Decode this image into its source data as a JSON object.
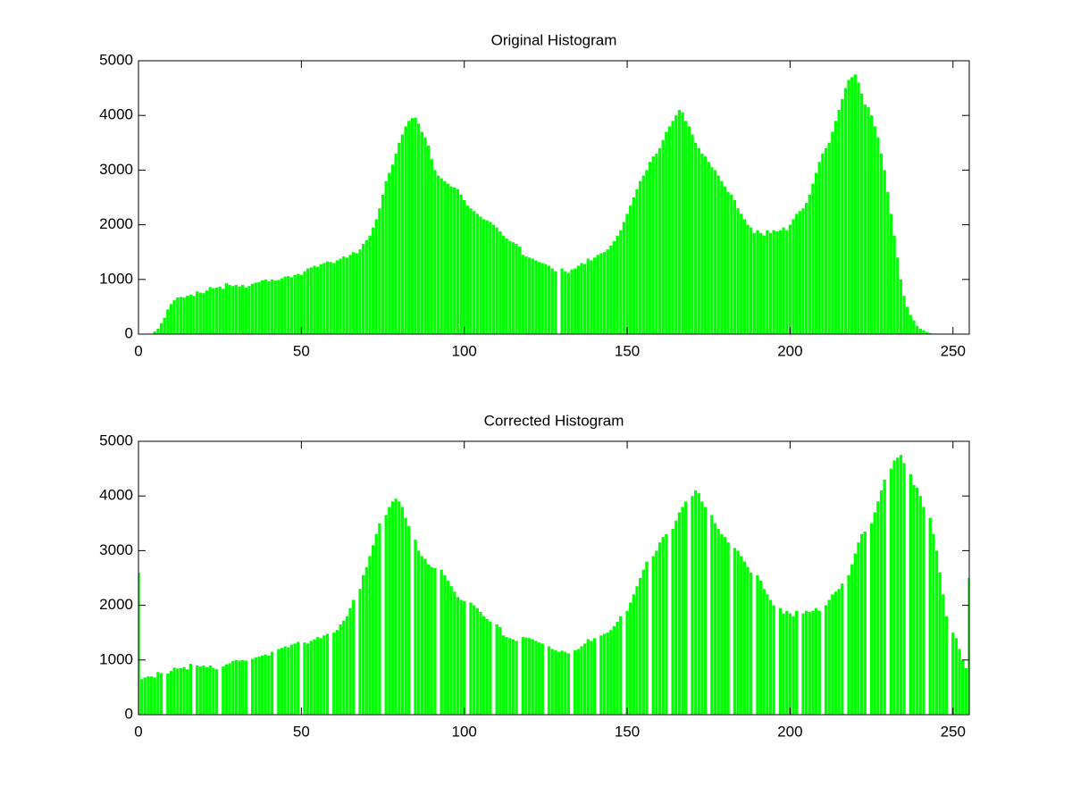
{
  "chart_data": [
    {
      "type": "bar",
      "title": "Original Histogram",
      "color": "#00ff00",
      "x": [
        0,
        1,
        2,
        3,
        4,
        5,
        6,
        7,
        8,
        9,
        10,
        11,
        12,
        13,
        14,
        15,
        16,
        17,
        18,
        19,
        20,
        21,
        22,
        23,
        24,
        25,
        26,
        27,
        28,
        29,
        30,
        31,
        32,
        33,
        34,
        35,
        36,
        37,
        38,
        39,
        40,
        41,
        42,
        43,
        44,
        45,
        46,
        47,
        48,
        49,
        50,
        51,
        52,
        53,
        54,
        55,
        56,
        57,
        58,
        59,
        60,
        61,
        62,
        63,
        64,
        65,
        66,
        67,
        68,
        69,
        70,
        71,
        72,
        73,
        74,
        75,
        76,
        77,
        78,
        79,
        80,
        81,
        82,
        83,
        84,
        85,
        86,
        87,
        88,
        89,
        90,
        91,
        92,
        93,
        94,
        95,
        96,
        97,
        98,
        99,
        100,
        101,
        102,
        103,
        104,
        105,
        106,
        107,
        108,
        109,
        110,
        111,
        112,
        113,
        114,
        115,
        116,
        117,
        118,
        119,
        120,
        121,
        122,
        123,
        124,
        125,
        126,
        127,
        128,
        129,
        130,
        131,
        132,
        133,
        134,
        135,
        136,
        137,
        138,
        139,
        140,
        141,
        142,
        143,
        144,
        145,
        146,
        147,
        148,
        149,
        150,
        151,
        152,
        153,
        154,
        155,
        156,
        157,
        158,
        159,
        160,
        161,
        162,
        163,
        164,
        165,
        166,
        167,
        168,
        169,
        170,
        171,
        172,
        173,
        174,
        175,
        176,
        177,
        178,
        179,
        180,
        181,
        182,
        183,
        184,
        185,
        186,
        187,
        188,
        189,
        190,
        191,
        192,
        193,
        194,
        195,
        196,
        197,
        198,
        199,
        200,
        201,
        202,
        203,
        204,
        205,
        206,
        207,
        208,
        209,
        210,
        211,
        212,
        213,
        214,
        215,
        216,
        217,
        218,
        219,
        220,
        221,
        222,
        223,
        224,
        225,
        226,
        227,
        228,
        229,
        230,
        231,
        232,
        233,
        234,
        235,
        236,
        237,
        238,
        239,
        240,
        241,
        242,
        243,
        244,
        245,
        246,
        247,
        248,
        249,
        250,
        251,
        252,
        253,
        254,
        255
      ],
      "values": [
        0,
        0,
        0,
        0,
        0,
        50,
        100,
        200,
        300,
        450,
        550,
        620,
        670,
        680,
        670,
        700,
        720,
        700,
        780,
        760,
        750,
        800,
        860,
        840,
        850,
        870,
        830,
        930,
        900,
        880,
        900,
        870,
        900,
        850,
        880,
        920,
        940,
        950,
        980,
        1000,
        970,
        1000,
        980,
        990,
        1020,
        1050,
        1060,
        1040,
        1080,
        1100,
        1080,
        1150,
        1200,
        1220,
        1250,
        1230,
        1280,
        1300,
        1330,
        1320,
        1300,
        1350,
        1380,
        1420,
        1400,
        1450,
        1500,
        1480,
        1550,
        1650,
        1720,
        1800,
        1950,
        2100,
        2300,
        2550,
        2800,
        2950,
        3100,
        3300,
        3500,
        3650,
        3800,
        3900,
        3950,
        3960,
        3850,
        3700,
        3600,
        3450,
        3200,
        3000,
        2900,
        2850,
        2800,
        2750,
        2700,
        2680,
        2650,
        2550,
        2450,
        2350,
        2300,
        2250,
        2200,
        2150,
        2100,
        2080,
        2050,
        2000,
        1950,
        1880,
        1800,
        1750,
        1700,
        1680,
        1650,
        1600,
        1450,
        1420,
        1400,
        1380,
        1350,
        1320,
        1300,
        1280,
        1250,
        1200,
        1150,
        0,
        1200,
        1150,
        1120,
        1180,
        1200,
        1250,
        1300,
        1280,
        1380,
        1350,
        1400,
        1450,
        1480,
        1500,
        1550,
        1620,
        1700,
        1800,
        1900,
        2050,
        2200,
        2350,
        2500,
        2650,
        2800,
        2900,
        3000,
        3150,
        3250,
        3300,
        3400,
        3550,
        3700,
        3800,
        3900,
        4000,
        4100,
        4050,
        3900,
        3800,
        3650,
        3500,
        3400,
        3300,
        3250,
        3150,
        3050,
        3000,
        2900,
        2800,
        2700,
        2600,
        2550,
        2450,
        2300,
        2200,
        2100,
        2000,
        1950,
        1850,
        1900,
        1850,
        1800,
        1900,
        1850,
        1900,
        1880,
        1900,
        1950,
        1900,
        2000,
        2100,
        2200,
        2250,
        2300,
        2400,
        2550,
        2750,
        2950,
        3150,
        3300,
        3400,
        3500,
        3700,
        3900,
        4100,
        4300,
        4500,
        4650,
        4700,
        4750,
        4600,
        4400,
        4200,
        4150,
        4000,
        3800,
        3600,
        3300,
        3000,
        2600,
        2200,
        1800,
        1400,
        1000,
        700,
        500,
        350,
        250,
        150,
        100,
        70,
        40,
        20,
        10,
        0,
        0,
        0,
        0,
        0,
        0,
        0,
        0,
        0,
        0,
        0
      ],
      "xlim": [
        0,
        255
      ],
      "xticks": [
        0,
        50,
        100,
        150,
        200,
        250
      ],
      "ylim": [
        0,
        5000
      ],
      "yticks": [
        0,
        1000,
        2000,
        3000,
        4000,
        5000
      ]
    },
    {
      "type": "bar",
      "title": "Corrected Histogram",
      "color": "#00ff00",
      "x": [
        0,
        1,
        2,
        3,
        4,
        5,
        6,
        7,
        8,
        9,
        10,
        11,
        12,
        13,
        14,
        15,
        16,
        17,
        18,
        19,
        20,
        21,
        22,
        23,
        24,
        25,
        26,
        27,
        28,
        29,
        30,
        31,
        32,
        33,
        34,
        35,
        36,
        37,
        38,
        39,
        40,
        41,
        42,
        43,
        44,
        45,
        46,
        47,
        48,
        49,
        50,
        51,
        52,
        53,
        54,
        55,
        56,
        57,
        58,
        59,
        60,
        61,
        62,
        63,
        64,
        65,
        66,
        67,
        68,
        69,
        70,
        71,
        72,
        73,
        74,
        75,
        76,
        77,
        78,
        79,
        80,
        81,
        82,
        83,
        84,
        85,
        86,
        87,
        88,
        89,
        90,
        91,
        92,
        93,
        94,
        95,
        96,
        97,
        98,
        99,
        100,
        101,
        102,
        103,
        104,
        105,
        106,
        107,
        108,
        109,
        110,
        111,
        112,
        113,
        114,
        115,
        116,
        117,
        118,
        119,
        120,
        121,
        122,
        123,
        124,
        125,
        126,
        127,
        128,
        129,
        130,
        131,
        132,
        133,
        134,
        135,
        136,
        137,
        138,
        139,
        140,
        141,
        142,
        143,
        144,
        145,
        146,
        147,
        148,
        149,
        150,
        151,
        152,
        153,
        154,
        155,
        156,
        157,
        158,
        159,
        160,
        161,
        162,
        163,
        164,
        165,
        166,
        167,
        168,
        169,
        170,
        171,
        172,
        173,
        174,
        175,
        176,
        177,
        178,
        179,
        180,
        181,
        182,
        183,
        184,
        185,
        186,
        187,
        188,
        189,
        190,
        191,
        192,
        193,
        194,
        195,
        196,
        197,
        198,
        199,
        200,
        201,
        202,
        203,
        204,
        205,
        206,
        207,
        208,
        209,
        210,
        211,
        212,
        213,
        214,
        215,
        216,
        217,
        218,
        219,
        220,
        221,
        222,
        223,
        224,
        225,
        226,
        227,
        228,
        229,
        230,
        231,
        232,
        233,
        234,
        235,
        236,
        237,
        238,
        239,
        240,
        241,
        242,
        243,
        244,
        245,
        246,
        247,
        248,
        249,
        250,
        251,
        252,
        253,
        254,
        255
      ],
      "values": [
        2600,
        650,
        680,
        700,
        700,
        680,
        780,
        760,
        0,
        750,
        800,
        860,
        840,
        850,
        870,
        830,
        930,
        0,
        900,
        880,
        900,
        870,
        900,
        850,
        830,
        0,
        880,
        920,
        940,
        980,
        1000,
        990,
        1000,
        990,
        0,
        1020,
        1050,
        1060,
        1080,
        1100,
        1080,
        1150,
        0,
        1200,
        1220,
        1250,
        1230,
        1280,
        1300,
        1330,
        0,
        1320,
        1300,
        1350,
        1380,
        1420,
        1400,
        1450,
        1480,
        0,
        1500,
        1550,
        1650,
        1720,
        1800,
        1950,
        2100,
        0,
        2300,
        2550,
        2700,
        2900,
        3100,
        3300,
        3500,
        0,
        3650,
        3800,
        3900,
        3950,
        3900,
        3800,
        3600,
        3450,
        0,
        3200,
        3000,
        2900,
        2850,
        2750,
        2700,
        2680,
        0,
        2650,
        2550,
        2450,
        2350,
        2250,
        2150,
        2100,
        2080,
        0,
        2050,
        2000,
        1950,
        1880,
        1800,
        1750,
        1700,
        0,
        1650,
        1600,
        1450,
        1420,
        1400,
        1380,
        1350,
        0,
        1420,
        1410,
        1400,
        1380,
        1350,
        1320,
        1300,
        0,
        1250,
        1200,
        1180,
        1150,
        1170,
        1150,
        1120,
        0,
        1180,
        1200,
        1250,
        1300,
        1380,
        1350,
        1400,
        0,
        1450,
        1480,
        1500,
        1550,
        1620,
        1700,
        1800,
        0,
        1900,
        2050,
        2200,
        2350,
        2500,
        2650,
        2800,
        0,
        2900,
        3000,
        3150,
        3250,
        3300,
        0,
        3400,
        3550,
        3700,
        3800,
        3900,
        0,
        4000,
        4100,
        4050,
        3900,
        3800,
        0,
        3650,
        3500,
        3400,
        3300,
        3250,
        3150,
        0,
        3050,
        3000,
        2900,
        2800,
        2700,
        2600,
        0,
        2550,
        2450,
        2300,
        2200,
        2100,
        2000,
        0,
        1950,
        1850,
        1900,
        1850,
        1800,
        1900,
        0,
        1850,
        1900,
        1880,
        1900,
        1950,
        1900,
        0,
        2000,
        2100,
        2200,
        2250,
        2300,
        2400,
        0,
        2550,
        2750,
        2950,
        3150,
        3300,
        3350,
        0,
        3500,
        3700,
        3900,
        4100,
        4300,
        0,
        4500,
        4650,
        4700,
        4750,
        4600,
        0,
        4400,
        4200,
        4150,
        4000,
        3800,
        0,
        3600,
        3300,
        3000,
        2600,
        2200,
        1800,
        0,
        1500,
        1400,
        1200,
        1000,
        850,
        2500
      ],
      "xlim": [
        0,
        255
      ],
      "xticks": [
        0,
        50,
        100,
        150,
        200,
        250
      ],
      "ylim": [
        0,
        5000
      ],
      "yticks": [
        0,
        1000,
        2000,
        3000,
        4000,
        5000
      ]
    }
  ]
}
